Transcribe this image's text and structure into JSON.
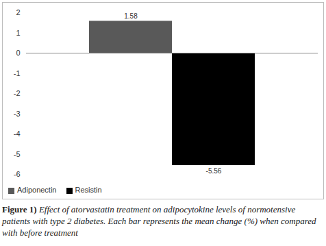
{
  "chart_data": {
    "type": "bar",
    "categories": [
      "Adiponectin",
      "Resistin"
    ],
    "values": [
      1.58,
      -5.56
    ],
    "colors": [
      "#595959",
      "#000000"
    ],
    "ylim": [
      -6,
      2
    ],
    "yticks": [
      -6,
      -5,
      -4,
      -3,
      -2,
      -1,
      0,
      1,
      2
    ],
    "grid": false,
    "legend": "bottom",
    "data_labels": true,
    "tick_labels": "y",
    "caption_label": "Figure 1)",
    "caption": "Effect of atorvastatin treatment on adipocytokine levels of normotensive patients with type 2 diabetes. Each bar represents the mean change (%) when compared with before treatment"
  }
}
